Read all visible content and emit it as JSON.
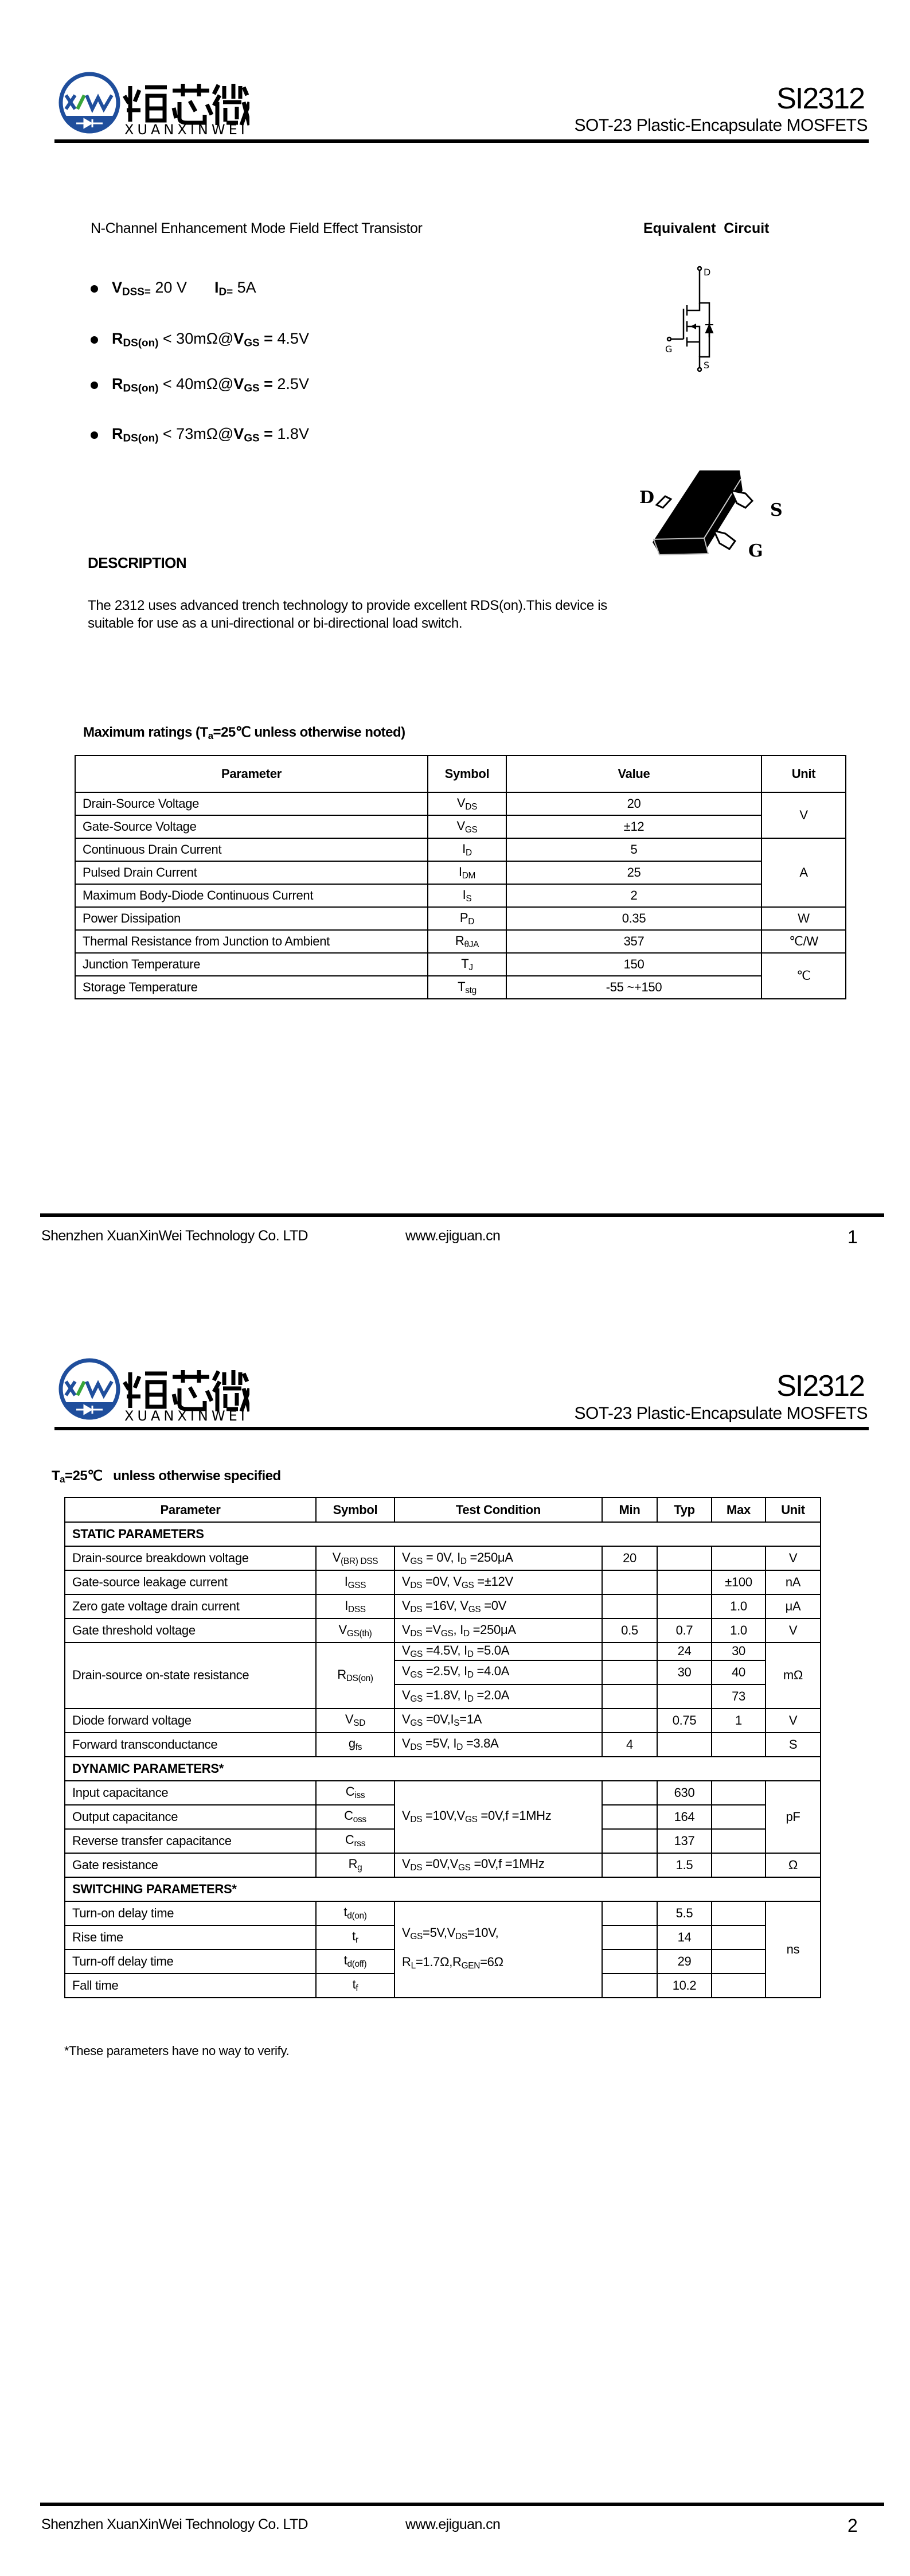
{
  "header": {
    "logo": {
      "mark": "XXW",
      "cn": "烜芯微",
      "en": "XUANXINWEI",
      "blue": "#1f4e9c",
      "green": "#3aa63a"
    },
    "part_number": "SI2312",
    "subtitle": "SOT-23 Plastic-Encapsulate MOSFETS"
  },
  "page1": {
    "intro": "N-Channel Enhancement Mode Field Effect Transistor",
    "equivalent_circuit_title": "Equivalent  Circuit",
    "circuit_labels": {
      "drain": "D",
      "gate": "G",
      "source": "S"
    },
    "package_labels": {
      "drain": "D",
      "source": "S",
      "gate": "G"
    },
    "bullets": [
      {
        "parts": [
          "*V*_{*DSS=*} 20 V",
          "*I*_{*D=*} 5A"
        ]
      },
      {
        "parts": [
          "*R*_{*DS(on)*} < 30mΩ@*V*_{*GS*} *=* 4.5V"
        ]
      },
      {
        "parts": [
          "*R*_{*DS(on)*} < 40mΩ@*V*_{*GS*} *=* 2.5V"
        ]
      },
      {
        "parts": [
          "*R*_{*DS(on)*} < 73mΩ@*V*_{*GS*} *=* 1.8V"
        ]
      }
    ],
    "description_title": "DESCRIPTION",
    "description": "The 2312 uses advanced trench technology to provide excellent RDS(on).This device is suitable for use as a uni-directional or bi-directional load switch.",
    "max_ratings_title": "Maximum ratings (T_{a}=25℃ unless otherwise noted)",
    "max_ratings": {
      "headers": [
        "Parameter",
        "Symbol",
        "Value",
        "Unit"
      ],
      "rows": [
        {
          "param": "Drain-Source Voltage",
          "symbol": "V_{DS}",
          "value": "20",
          "unit": "V",
          "unit_span": 2
        },
        {
          "param": "Gate-Source Voltage",
          "symbol": "V_{GS}",
          "value": "±12"
        },
        {
          "param": "Continuous Drain Current",
          "symbol": "I_{D}",
          "value": "5",
          "unit": "A",
          "unit_span": 3
        },
        {
          "param": "Pulsed Drain Current",
          "symbol": "I_{DM}",
          "value": "25"
        },
        {
          "param": "Maximum Body-Diode Continuous Current",
          "symbol": "I_{S}",
          "value": "2"
        },
        {
          "param": "Power Dissipation",
          "symbol": "P_{D}",
          "value": "0.35",
          "unit": "W",
          "unit_span": 1
        },
        {
          "param": "Thermal Resistance from Junction to Ambient",
          "symbol": "R_{θJA}",
          "value": "357",
          "unit": "℃/W",
          "unit_span": 1
        },
        {
          "param": "Junction Temperature",
          "symbol": "T_{J}",
          "value": "150",
          "unit": "℃",
          "unit_span": 2
        },
        {
          "param": "Storage Temperature",
          "symbol": "T_{stg}",
          "value": "-55 ~+150"
        }
      ]
    }
  },
  "page2": {
    "title": "T_{a}=25℃   unless otherwise specified",
    "electrical": {
      "headers": [
        "Parameter",
        "Symbol",
        "Test Condition",
        "Min",
        "Typ",
        "Max",
        "Unit"
      ],
      "rows": [
        {
          "section": "STATIC PARAMETERS"
        },
        {
          "cells": [
            {
              "t": "Drain-source breakdown voltage"
            },
            {
              "t": "V_{(BR) DSS}",
              "c": 1
            },
            {
              "t": "V_{GS} = 0V, I_{D} =250μA"
            },
            {
              "t": "20",
              "c": 1
            },
            {
              "t": "",
              "c": 1
            },
            {
              "t": "",
              "c": 1
            },
            {
              "t": "V",
              "c": 1
            }
          ]
        },
        {
          "cells": [
            {
              "t": "Gate-source leakage current"
            },
            {
              "t": "I_{GSS}",
              "c": 1
            },
            {
              "t": "V_{DS} =0V, V_{GS} =±12V"
            },
            {
              "t": "",
              "c": 1
            },
            {
              "t": "",
              "c": 1
            },
            {
              "t": "±100",
              "c": 1
            },
            {
              "t": "nA",
              "c": 1
            }
          ]
        },
        {
          "cells": [
            {
              "t": "Zero gate voltage drain current"
            },
            {
              "t": "I_{DSS}",
              "c": 1
            },
            {
              "t": "V_{DS} =16V, V_{GS} =0V"
            },
            {
              "t": "",
              "c": 1
            },
            {
              "t": "",
              "c": 1
            },
            {
              "t": "1.0",
              "c": 1
            },
            {
              "t": "μA",
              "c": 1
            }
          ]
        },
        {
          "cells": [
            {
              "t": "Gate threshold voltage"
            },
            {
              "t": "V_{GS(th)}",
              "c": 1
            },
            {
              "t": "V_{DS} =V_{GS}, I_{D} =250μA"
            },
            {
              "t": "0.5",
              "c": 1
            },
            {
              "t": "0.7",
              "c": 1
            },
            {
              "t": "1.0",
              "c": 1
            },
            {
              "t": "V",
              "c": 1
            }
          ]
        },
        {
          "cells": [
            {
              "t": "Drain-source on-state resistance",
              "rs": 3
            },
            {
              "t": "R_{DS(on)}",
              "c": 1,
              "rs": 3
            },
            {
              "t": "V_{GS} =4.5V, I_{D} =5.0A"
            },
            {
              "t": "",
              "c": 1
            },
            {
              "t": "24",
              "c": 1
            },
            {
              "t": "30",
              "c": 1
            },
            {
              "t": "mΩ",
              "c": 1,
              "rs": 3
            }
          ]
        },
        {
          "cells": [
            {
              "t": "V_{GS} =2.5V, I_{D} =4.0A"
            },
            {
              "t": "",
              "c": 1
            },
            {
              "t": "30",
              "c": 1
            },
            {
              "t": "40",
              "c": 1
            }
          ]
        },
        {
          "cells": [
            {
              "t": "V_{GS} =1.8V, I_{D} =2.0A"
            },
            {
              "t": "",
              "c": 1
            },
            {
              "t": "",
              "c": 1
            },
            {
              "t": "73",
              "c": 1
            }
          ]
        },
        {
          "cells": [
            {
              "t": "Diode forward voltage"
            },
            {
              "t": "V_{SD}",
              "c": 1
            },
            {
              "t": "V_{GS} =0V,I_{S}=1A"
            },
            {
              "t": "",
              "c": 1
            },
            {
              "t": "0.75",
              "c": 1
            },
            {
              "t": "1",
              "c": 1
            },
            {
              "t": "V",
              "c": 1
            }
          ]
        },
        {
          "cells": [
            {
              "t": "Forward transconductance"
            },
            {
              "t": "g_{fs}",
              "c": 1
            },
            {
              "t": "V_{DS} =5V, I_{D} =3.8A"
            },
            {
              "t": "4",
              "c": 1
            },
            {
              "t": "",
              "c": 1
            },
            {
              "t": "",
              "c": 1
            },
            {
              "t": "S",
              "c": 1
            }
          ]
        },
        {
          "section": "DYNAMIC PARAMETERS*"
        },
        {
          "cells": [
            {
              "t": "Input capacitance"
            },
            {
              "t": "C_{iss}",
              "c": 1
            },
            {
              "t": "V_{DS} =10V,V_{GS} =0V,f =1MHz",
              "rs": 3
            },
            {
              "t": "",
              "c": 1
            },
            {
              "t": "630",
              "c": 1
            },
            {
              "t": "",
              "c": 1
            },
            {
              "t": "pF",
              "c": 1,
              "rs": 3
            }
          ]
        },
        {
          "cells": [
            {
              "t": "Output capacitance"
            },
            {
              "t": "C_{oss}",
              "c": 1
            },
            {
              "t": "",
              "c": 1
            },
            {
              "t": "164",
              "c": 1
            },
            {
              "t": "",
              "c": 1
            }
          ]
        },
        {
          "cells": [
            {
              "t": "Reverse transfer capacitance"
            },
            {
              "t": "C_{rss}",
              "c": 1
            },
            {
              "t": "",
              "c": 1
            },
            {
              "t": "137",
              "c": 1
            },
            {
              "t": "",
              "c": 1
            }
          ]
        },
        {
          "cells": [
            {
              "t": "Gate resistance"
            },
            {
              "t": "R_{g}",
              "c": 1
            },
            {
              "t": "V_{DS} =0V,V_{GS} =0V,f =1MHz"
            },
            {
              "t": "",
              "c": 1
            },
            {
              "t": "1.5",
              "c": 1
            },
            {
              "t": "",
              "c": 1
            },
            {
              "t": "Ω",
              "c": 1
            }
          ]
        },
        {
          "section": "SWITCHING PARAMETERS*"
        },
        {
          "cells": [
            {
              "t": "Turn-on delay time"
            },
            {
              "t": "t_{d(on)}",
              "c": 1
            },
            {
              "t": "V_{GS}=5V,V_{DS}=10V,|R_{L}=1.7Ω,R_{GEN}=6Ω",
              "rs": 4
            },
            {
              "t": "",
              "c": 1
            },
            {
              "t": "5.5",
              "c": 1
            },
            {
              "t": "",
              "c": 1
            },
            {
              "t": "ns",
              "c": 1,
              "rs": 4
            }
          ]
        },
        {
          "cells": [
            {
              "t": "Rise time"
            },
            {
              "t": "t_{r}",
              "c": 1
            },
            {
              "t": "",
              "c": 1
            },
            {
              "t": "14",
              "c": 1
            },
            {
              "t": "",
              "c": 1
            }
          ]
        },
        {
          "cells": [
            {
              "t": "Turn-off delay time"
            },
            {
              "t": "t_{d(off)}",
              "c": 1
            },
            {
              "t": "",
              "c": 1
            },
            {
              "t": "29",
              "c": 1
            },
            {
              "t": "",
              "c": 1
            }
          ]
        },
        {
          "cells": [
            {
              "t": "Fall time"
            },
            {
              "t": "t_{f}",
              "c": 1
            },
            {
              "t": "",
              "c": 1
            },
            {
              "t": "10.2",
              "c": 1
            },
            {
              "t": "",
              "c": 1
            }
          ]
        }
      ]
    },
    "footnote": "*These parameters have no way to verify."
  },
  "footer": {
    "company": "Shenzhen XuanXinWei Technology Co. LTD",
    "website": "www.ejiguan.cn",
    "pages": [
      "1",
      "2"
    ]
  }
}
